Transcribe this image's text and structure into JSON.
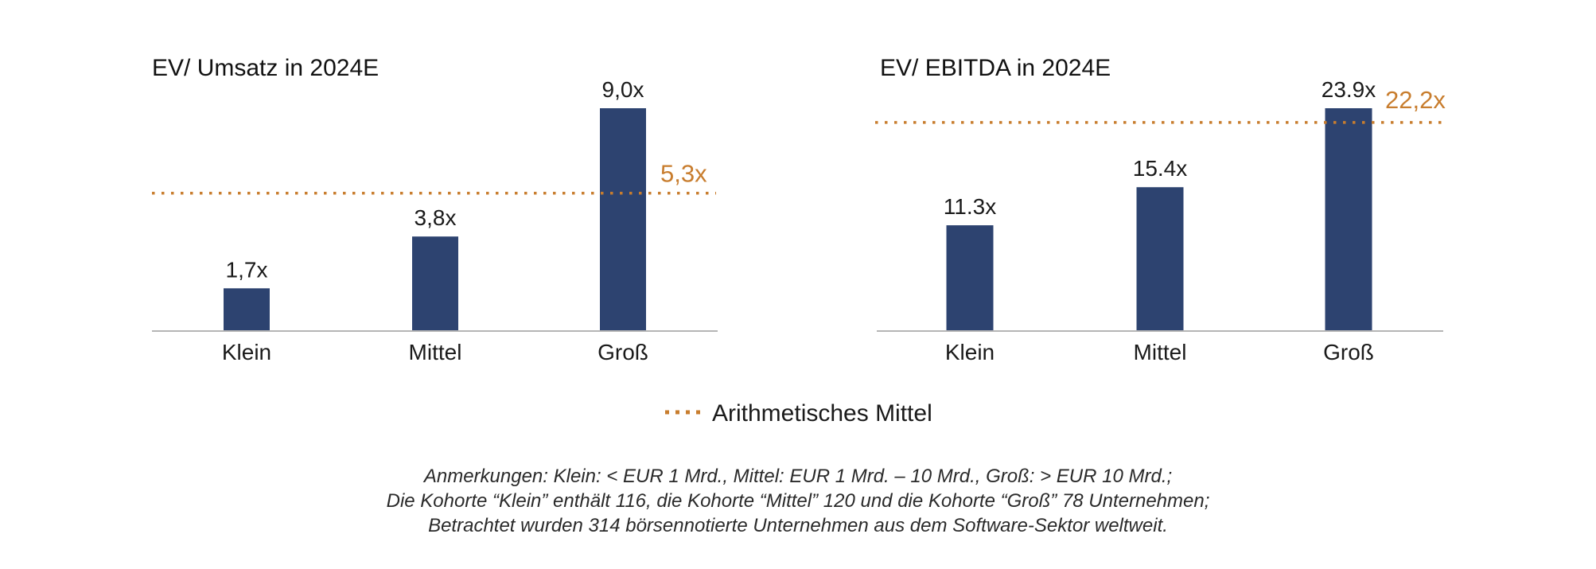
{
  "colors": {
    "bar": "#2d4370",
    "mean": "#c87d2e",
    "axis": "#b5b5b5"
  },
  "chart_data": [
    {
      "type": "bar",
      "title": "EV/ Umsatz in 2024E",
      "categories": [
        "Klein",
        "Mittel",
        "Groß"
      ],
      "values": [
        1.7,
        3.8,
        9.0
      ],
      "value_labels": [
        "1,7x",
        "3,8x",
        "9,0x"
      ],
      "mean": {
        "value": 5.3,
        "label": "5,3x"
      },
      "xlabel": "",
      "ylabel": "",
      "ylim": [
        0,
        9.0
      ],
      "grid": false
    },
    {
      "type": "bar",
      "title": "EV/ EBITDA in 2024E",
      "categories": [
        "Klein",
        "Mittel",
        "Groß"
      ],
      "values": [
        11.3,
        15.4,
        23.9
      ],
      "value_labels": [
        "11.3x",
        "15.4x",
        "23.9x"
      ],
      "mean": {
        "value": 22.2,
        "label": "22,2x"
      },
      "xlabel": "",
      "ylabel": "",
      "ylim": [
        0,
        23.9
      ],
      "grid": false
    }
  ],
  "legend": {
    "label": "Arithmetisches Mittel",
    "placement": "bottom-center"
  },
  "notes": [
    "Anmerkungen: Klein: < EUR 1 Mrd., Mittel: EUR 1 Mrd. – 10 Mrd., Groß: > EUR 10 Mrd.;",
    "Die Kohorte “Klein” enthält 116, die Kohorte “Mittel” 120 und die Kohorte “Groß” 78 Unternehmen;",
    "Betrachtet wurden 314 börsennotierte Unternehmen aus dem Software-Sektor weltweit."
  ]
}
